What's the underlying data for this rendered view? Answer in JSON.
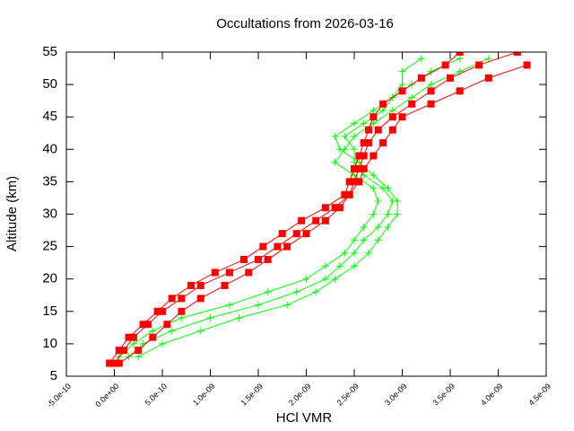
{
  "chart_data": {
    "type": "line",
    "title": "Occultations from 2026-03-16",
    "xlabel": "HCl VMR",
    "ylabel": "Altitude (km)",
    "xlim": [
      -5e-10,
      4.5e-09
    ],
    "ylim": [
      5,
      55
    ],
    "xticks": [
      {
        "value": -5e-10,
        "label": "-5.0e-10"
      },
      {
        "value": 0,
        "label": "0.0e+00"
      },
      {
        "value": 5e-10,
        "label": "5.0e-10"
      },
      {
        "value": 1e-09,
        "label": "1.0e-09"
      },
      {
        "value": 1.5e-09,
        "label": "1.5e-09"
      },
      {
        "value": 2e-09,
        "label": "2.0e-09"
      },
      {
        "value": 2.5e-09,
        "label": "2.5e-09"
      },
      {
        "value": 3e-09,
        "label": "3.0e-09"
      },
      {
        "value": 3.5e-09,
        "label": "3.5e-09"
      },
      {
        "value": 4e-09,
        "label": "4.0e-09"
      },
      {
        "value": 4.5e-09,
        "label": "4.5e-09"
      }
    ],
    "yticks": [
      5,
      10,
      15,
      20,
      25,
      30,
      35,
      40,
      45,
      50,
      55
    ],
    "grid": false,
    "series": [
      {
        "color": "#00ff00",
        "marker": "plus",
        "x": [
          1.5e-10,
          3e-10,
          6e-10,
          1e-09,
          1.5e-09,
          1.9e-09,
          2.2e-09,
          2.35e-09,
          2.5e-09,
          2.6e-09,
          2.75e-09,
          2.85e-09,
          2.9e-09,
          2.8e-09,
          2.6e-09,
          2.5e-09,
          2.5e-09,
          2.4e-09,
          2.6e-09,
          2.8e-09,
          2.9e-09,
          3.1e-09,
          3.3e-09,
          3.6e-09
        ],
        "values": [
          8,
          10,
          12,
          14,
          16,
          18,
          20,
          22,
          24,
          26,
          28,
          30,
          32,
          34,
          36,
          38,
          40,
          42,
          44,
          46,
          48,
          50,
          52,
          54
        ]
      },
      {
        "color": "#00ff00",
        "marker": "plus",
        "x": [
          5e-11,
          2e-10,
          4e-10,
          7e-10,
          1.2e-09,
          1.6e-09,
          2e-09,
          2.2e-09,
          2.4e-09,
          2.5e-09,
          2.6e-09,
          2.7e-09,
          2.75e-09,
          2.7e-09,
          2.5e-09,
          2.3e-09,
          2.4e-09,
          2.5e-09,
          2.7e-09,
          2.9e-09,
          3.1e-09,
          3.3e-09,
          3.6e-09,
          3.9e-09
        ],
        "values": [
          8,
          10,
          12,
          14,
          16,
          18,
          20,
          22,
          24,
          26,
          28,
          30,
          32,
          34,
          36,
          38,
          40,
          42,
          44,
          46,
          48,
          50,
          52,
          54
        ]
      },
      {
        "color": "#00ff00",
        "marker": "plus",
        "x": [
          2.5e-10,
          5e-10,
          9e-10,
          1.3e-09,
          1.8e-09,
          2.1e-09,
          2.3e-09,
          2.5e-09,
          2.65e-09,
          2.75e-09,
          2.85e-09,
          2.95e-09,
          2.95e-09,
          2.85e-09,
          2.7e-09,
          2.55e-09,
          2.35e-09,
          2.3e-09,
          2.5e-09,
          2.7e-09,
          2.9e-09,
          3e-09,
          3e-09,
          3.2e-09
        ],
        "values": [
          8,
          10,
          12,
          14,
          16,
          18,
          20,
          22,
          24,
          26,
          28,
          30,
          32,
          34,
          36,
          38,
          40,
          42,
          44,
          46,
          48,
          50,
          52,
          54
        ]
      },
      {
        "color": "#ff0000",
        "marker": "square",
        "x": [
          0,
          1e-10,
          2e-10,
          3.5e-10,
          5e-10,
          7e-10,
          9e-10,
          1.2e-09,
          1.5e-09,
          1.7e-09,
          1.9e-09,
          2.1e-09,
          2.3e-09,
          2.45e-09,
          2.5e-09,
          2.55e-09,
          2.6e-09,
          2.65e-09,
          2.75e-09,
          2.9e-09,
          3.1e-09,
          3.3e-09,
          3.5e-09,
          3.8e-09,
          4.2e-09
        ],
        "values": [
          7,
          9,
          11,
          13,
          15,
          17,
          19,
          21,
          23,
          25,
          27,
          29,
          31,
          33,
          35,
          37,
          39,
          41,
          43,
          45,
          47,
          49,
          51,
          53,
          55
        ]
      },
      {
        "color": "#ff0000",
        "marker": "square",
        "x": [
          5e-11,
          2.5e-10,
          4e-10,
          5.5e-10,
          7e-10,
          9e-10,
          1.15e-09,
          1.4e-09,
          1.6e-09,
          1.8e-09,
          2e-09,
          2.2e-09,
          2.35e-09,
          2.45e-09,
          2.55e-09,
          2.6e-09,
          2.7e-09,
          2.8e-09,
          2.9e-09,
          3e-09,
          3.3e-09,
          3.6e-09,
          3.9e-09,
          4.3e-09
        ],
        "values": [
          7,
          9,
          11,
          13,
          15,
          17,
          19,
          21,
          23,
          25,
          27,
          29,
          31,
          33,
          35,
          37,
          39,
          41,
          43,
          45,
          47,
          49,
          51,
          53
        ]
      },
      {
        "color": "#ff0000",
        "marker": "square",
        "x": [
          -5e-11,
          5e-11,
          1.5e-10,
          3e-10,
          4.5e-10,
          6e-10,
          8e-10,
          1.05e-09,
          1.35e-09,
          1.55e-09,
          1.75e-09,
          1.95e-09,
          2.2e-09,
          2.4e-09,
          2.45e-09,
          2.5e-09,
          2.55e-09,
          2.6e-09,
          2.65e-09,
          2.7e-09,
          2.8e-09,
          3e-09,
          3.2e-09,
          3.45e-09,
          3.6e-09
        ],
        "values": [
          7,
          9,
          11,
          13,
          15,
          17,
          19,
          21,
          23,
          25,
          27,
          29,
          31,
          33,
          35,
          37,
          39,
          41,
          43,
          45,
          47,
          49,
          51,
          53,
          55
        ]
      }
    ]
  }
}
